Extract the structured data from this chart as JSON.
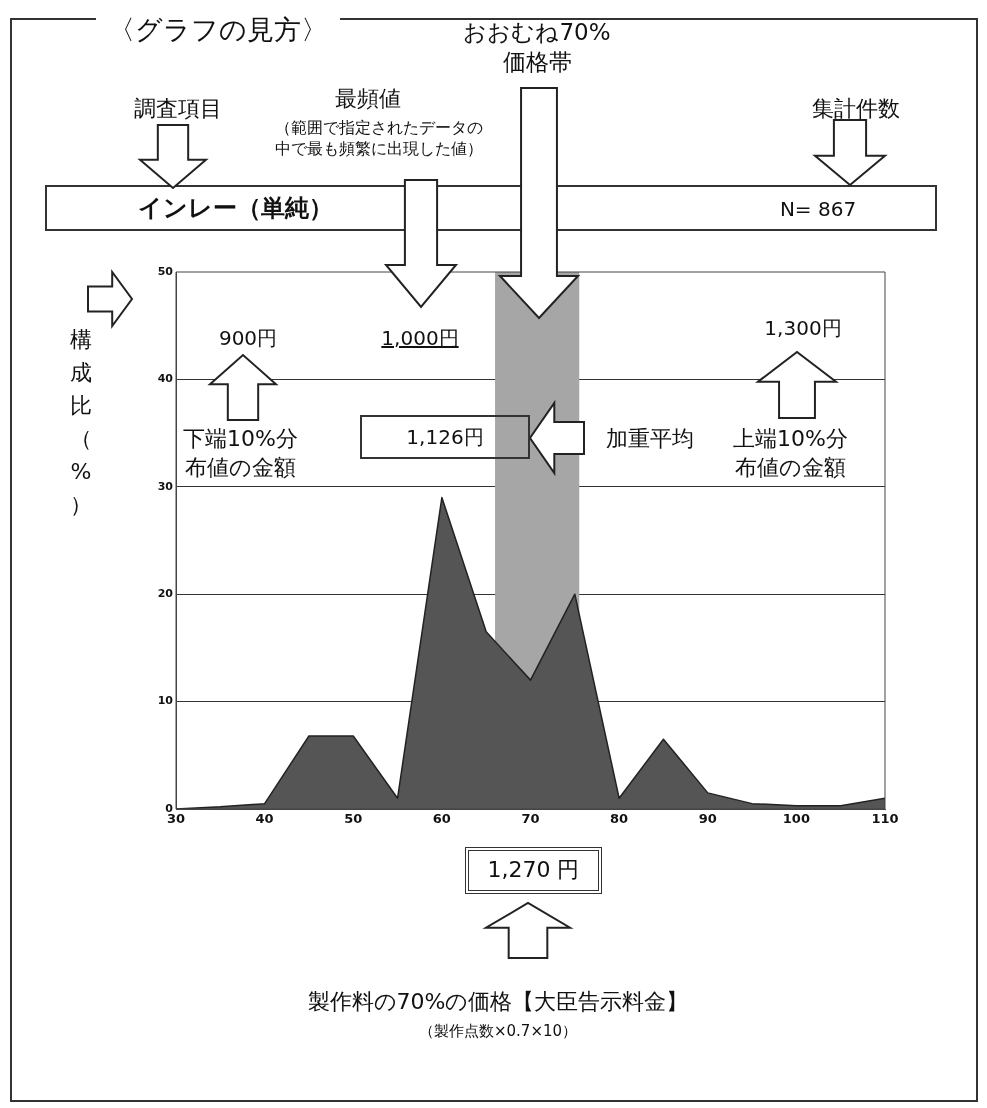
{
  "chart_data": {
    "type": "area",
    "title": "〈グラフの見方〉",
    "subtitle": "インレー（単純）",
    "ylabel": "構成比（%）",
    "x": [
      30,
      35,
      40,
      45,
      50,
      55,
      60,
      65,
      70,
      75,
      80,
      85,
      90,
      95,
      100,
      105,
      110
    ],
    "series": [
      {
        "color": "#555555",
        "values": [
          0,
          0.2,
          0.5,
          6.8,
          6.8,
          1,
          29,
          16.5,
          12,
          20,
          1,
          6.5,
          1.5,
          0.5,
          0.3,
          0.3,
          1
        ]
      }
    ],
    "xlim": [
      30,
      110
    ],
    "xticks": [
      30,
      40,
      50,
      60,
      70,
      80,
      90,
      100,
      110
    ],
    "ylim": [
      0,
      50
    ],
    "yticks": [
      0,
      10,
      20,
      30,
      40,
      50
    ],
    "grid": "y",
    "bands": [
      {
        "axis": "x",
        "from": 66,
        "to": 75.5,
        "color": "#a6a6a6"
      }
    ],
    "annotations": [
      "調査項目",
      "最頻値",
      "（範囲で指定されたデータの中で最も頻繁に出現した値）",
      "集計件数",
      "N= 867",
      "900円",
      "1,000円",
      "1,300円",
      "下端10%分布値の金額",
      "1,126円",
      "加重平均",
      "上端10%分布値の金額",
      "1,270 円",
      "製作料の70%の価格【大臣告示料金】",
      "（製作点数×0.7×10）",
      "おおむね70%価格帯"
    ]
  }
}
